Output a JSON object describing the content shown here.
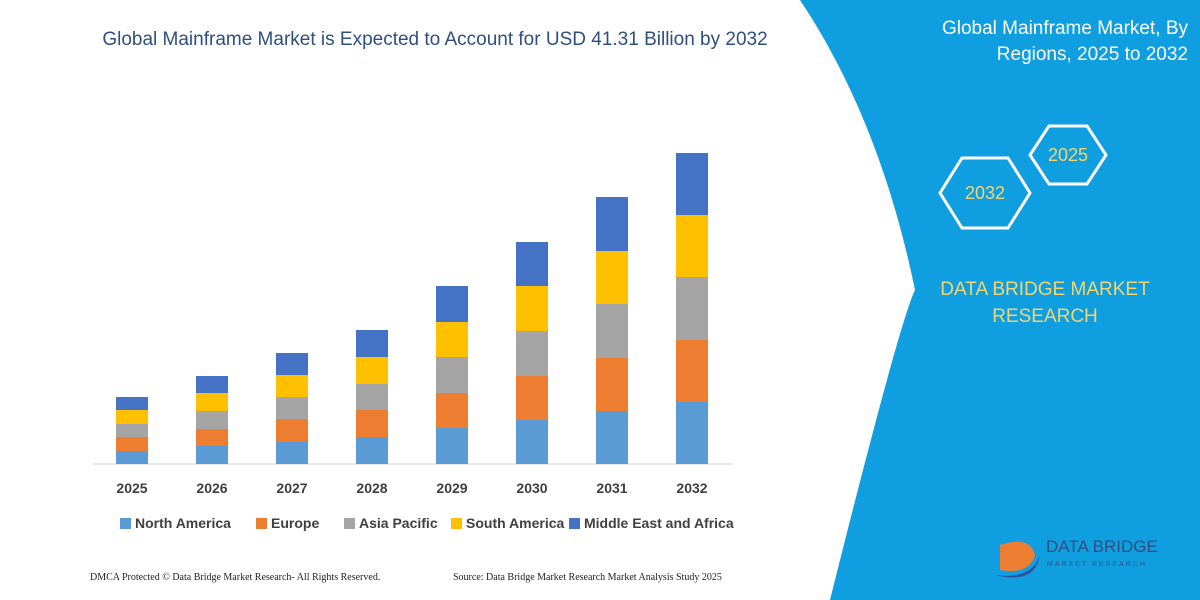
{
  "chart_data": {
    "type": "stacked_bar",
    "title": "Global Mainframe Market is Expected to Account for USD 41.31 Billion by 2032",
    "categories": [
      "2025",
      "2026",
      "2027",
      "2028",
      "2029",
      "2030",
      "2031",
      "2032"
    ],
    "series": [
      {
        "name": "North America",
        "color": "#5b9bd5",
        "values": [
          13,
          18,
          22,
          27,
          36,
          44,
          53,
          62
        ]
      },
      {
        "name": "Europe",
        "color": "#ed7d31",
        "values": [
          14,
          17,
          23,
          27,
          35,
          44,
          53,
          62
        ]
      },
      {
        "name": "Asia Pacific",
        "color": "#a5a5a5",
        "values": [
          13,
          18,
          22,
          26,
          36,
          45,
          54,
          63
        ]
      },
      {
        "name": "South America",
        "color": "#ffc000",
        "values": [
          14,
          18,
          22,
          27,
          35,
          45,
          53,
          62
        ]
      },
      {
        "name": "Middle East and Africa",
        "color": "#4472c4",
        "values": [
          13,
          17,
          22,
          27,
          36,
          44,
          54,
          62
        ]
      }
    ]
  },
  "panel": {
    "title": "Global Mainframe Market, By Regions, 2025 to 2032",
    "hexagons": [
      "2025",
      "2032"
    ],
    "brand": "DATA BRIDGE MARKET RESEARCH"
  },
  "logo": {
    "name": "DATA BRIDGE",
    "tagline": "MARKET RESEARCH"
  },
  "footer": {
    "left": "DMCA Protected © Data Bridge Market Research-  All Rights Reserved.",
    "right": "Source: Data Bridge Market Research  Market Analysis Study 2025"
  }
}
